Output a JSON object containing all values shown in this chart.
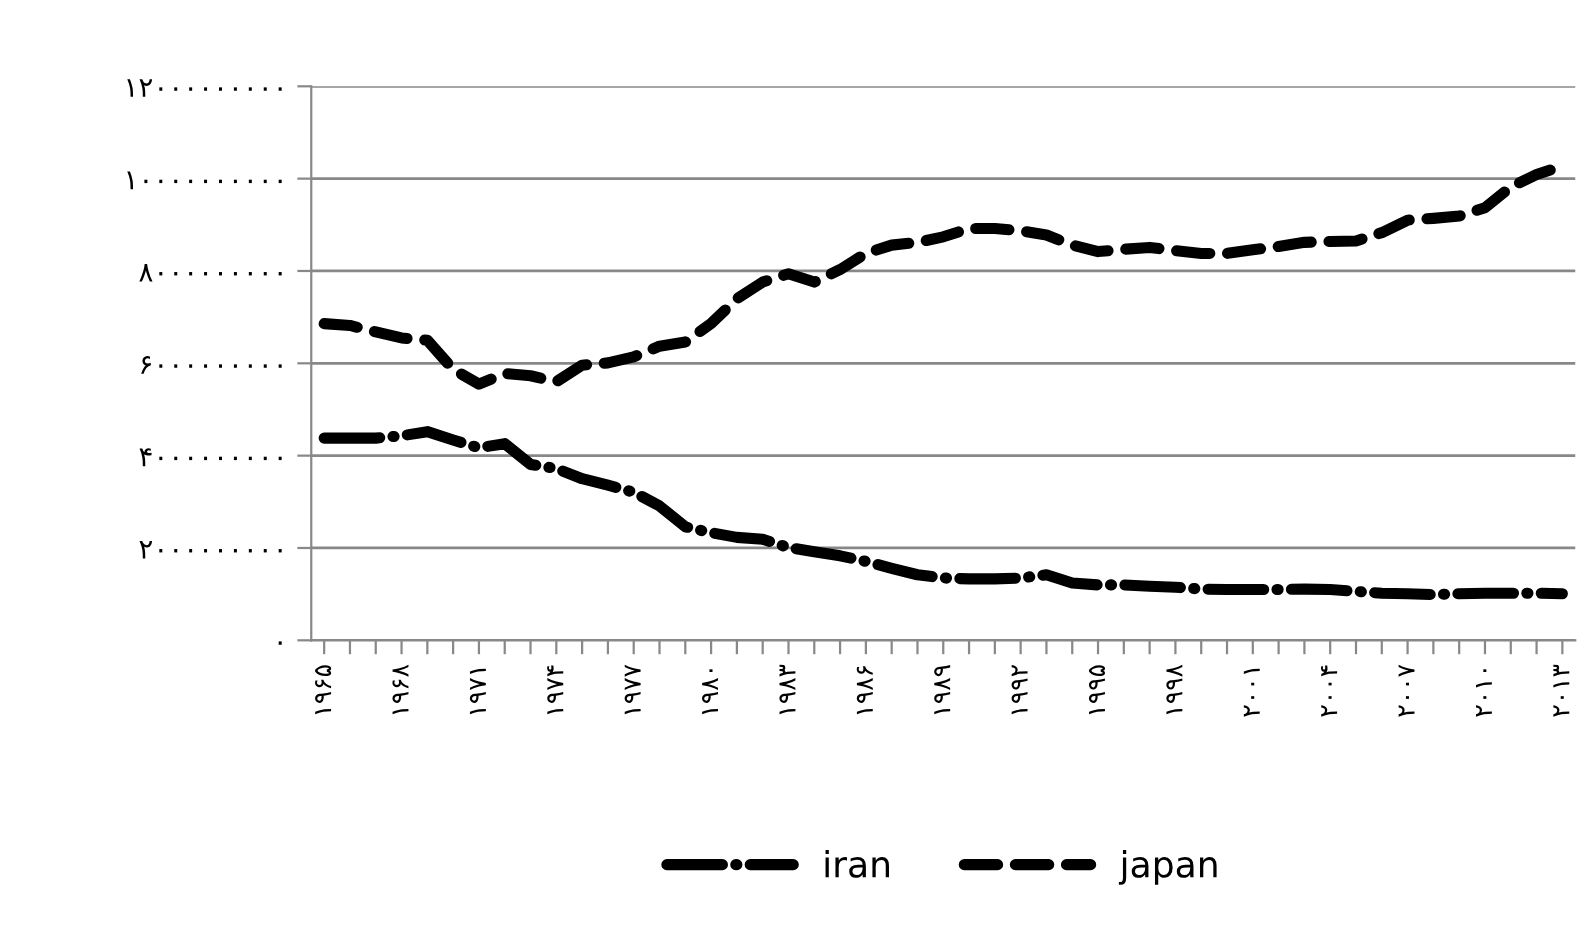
{
  "chart_data": {
    "type": "line",
    "categories": [
      "۱۹۶۵",
      null,
      null,
      "۱۹۶۸",
      null,
      null,
      "۱۹۷۱",
      null,
      null,
      "۱۹۷۴",
      null,
      null,
      "۱۹۷۷",
      null,
      null,
      "۱۹۸۰",
      null,
      null,
      "۱۹۸۳",
      null,
      null,
      "۱۹۸۶",
      null,
      null,
      "۱۹۸۹",
      null,
      null,
      "۱۹۹۲",
      null,
      null,
      "۱۹۹۵",
      null,
      null,
      "۱۹۹۸",
      null,
      null,
      "۲۰۰۱",
      null,
      null,
      "۲۰۰۴",
      null,
      null,
      "۲۰۰۷",
      null,
      null,
      "۲۰۱۰",
      null,
      null,
      "۲۰۱۳"
    ],
    "series": [
      {
        "name": "iran",
        "color": "#000000",
        "line_style": "dashdot",
        "values": [
          4380000000,
          4380000000,
          4380000000,
          4430000000,
          4520000000,
          4340000000,
          4170000000,
          4260000000,
          3810000000,
          3720000000,
          3500000000,
          3360000000,
          3210000000,
          2910000000,
          2460000000,
          2330000000,
          2230000000,
          2190000000,
          2010000000,
          1920000000,
          1830000000,
          1710000000,
          1560000000,
          1420000000,
          1350000000,
          1330000000,
          1330000000,
          1350000000,
          1420000000,
          1240000000,
          1200000000,
          1200000000,
          1170000000,
          1150000000,
          1110000000,
          1100000000,
          1100000000,
          1100000000,
          1110000000,
          1100000000,
          1060000000,
          1020000000,
          1010000000,
          990000000,
          1010000000,
          1020000000,
          1020000000,
          1020000000,
          1010000000
        ]
      },
      {
        "name": "japan",
        "color": "#000000",
        "line_style": "dashed",
        "values": [
          6860000000,
          6820000000,
          6680000000,
          6550000000,
          6500000000,
          5870000000,
          5550000000,
          5780000000,
          5730000000,
          5600000000,
          5960000000,
          6010000000,
          6140000000,
          6370000000,
          6460000000,
          6860000000,
          7400000000,
          7760000000,
          7940000000,
          7760000000,
          8030000000,
          8380000000,
          8560000000,
          8620000000,
          8740000000,
          8920000000,
          8920000000,
          8870000000,
          8780000000,
          8560000000,
          8420000000,
          8470000000,
          8510000000,
          8440000000,
          8380000000,
          8380000000,
          8460000000,
          8530000000,
          8620000000,
          8640000000,
          8650000000,
          8830000000,
          9100000000,
          9140000000,
          9190000000,
          9370000000,
          9820000000,
          10090000000,
          10270000000
        ]
      }
    ],
    "ylim": [
      0,
      12000000000
    ],
    "yticks": [
      {
        "value": 0,
        "label": "۰"
      },
      {
        "value": 2000000000,
        "label": "۲۰۰۰۰۰۰۰۰۰"
      },
      {
        "value": 4000000000,
        "label": "۴۰۰۰۰۰۰۰۰۰"
      },
      {
        "value": 6000000000,
        "label": "۶۰۰۰۰۰۰۰۰۰"
      },
      {
        "value": 8000000000,
        "label": "۸۰۰۰۰۰۰۰۰۰"
      },
      {
        "value": 10000000000,
        "label": "۱۰۰۰۰۰۰۰۰۰۰"
      },
      {
        "value": 12000000000,
        "label": "۱۲۰۰۰۰۰۰۰۰۰"
      }
    ],
    "grid": "y",
    "legend": "bottom",
    "marker": "none"
  }
}
